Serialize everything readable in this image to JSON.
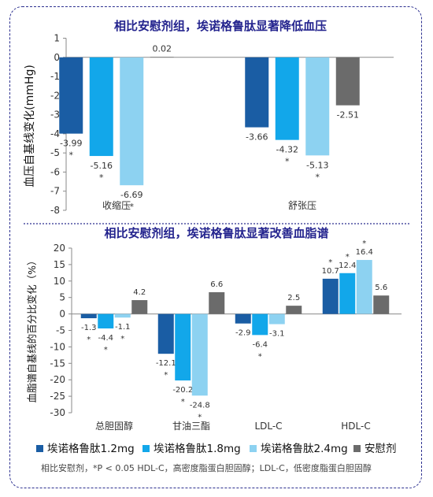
{
  "colors": {
    "s1": "#1a5da4",
    "s2": "#12a7ea",
    "s3": "#8dd2f1",
    "placebo": "#6b6b6b",
    "title": "#24248e",
    "frame": "#2b2f8f",
    "axis": "#8a8a8a",
    "text": "#333333",
    "sig": "#333333"
  },
  "footnote": "相比安慰剂，*P < 0.05    HDL-C，高密度脂蛋白胆固醇；LDL-C，低密度脂蛋白胆固醇",
  "chart_data": [
    {
      "type": "bar",
      "title": "相比安慰剂组，埃诺格鲁肽显著降低血压",
      "ylabel": "血压自基线变化(mmHg)",
      "xlabel": "",
      "ylim": [
        -8,
        1
      ],
      "yticks": [
        1,
        0,
        -1,
        -2,
        -3,
        -4,
        -5,
        -6,
        -7,
        -8
      ],
      "categories": [
        "收缩压",
        "舒张压"
      ],
      "series": [
        {
          "name": "埃诺格鲁肽1.2mg",
          "values": [
            -3.99,
            -3.66
          ],
          "labels": [
            "-3.99",
            "-3.66"
          ],
          "sig": [
            true,
            false
          ]
        },
        {
          "name": "埃诺格鲁肽1.8mg",
          "values": [
            -5.16,
            -4.32
          ],
          "labels": [
            "-5.16",
            "-4.32"
          ],
          "sig": [
            true,
            true
          ]
        },
        {
          "name": "埃诺格鲁肽2.4mg",
          "values": [
            -6.69,
            -5.13
          ],
          "labels": [
            "-6.69",
            "-5.13"
          ],
          "sig": [
            true,
            true
          ]
        },
        {
          "name": "安慰剂",
          "values": [
            0.02,
            -2.51
          ],
          "labels": [
            "0.02",
            "-2.51"
          ],
          "sig": [
            false,
            false
          ]
        }
      ],
      "grid": false
    },
    {
      "type": "bar",
      "title": "相比安慰剂组，埃诺格鲁肽显著改善血脂谱",
      "ylabel": "血脂谱自基线的百分比变化（%）",
      "xlabel": "",
      "ylim": [
        -30,
        20
      ],
      "yticks": [
        20,
        15,
        10,
        5,
        0,
        -5,
        -10,
        -15,
        -20,
        -25,
        -30
      ],
      "categories": [
        "总胆固醇",
        "甘油三酯",
        "LDL-C",
        "HDL-C"
      ],
      "series": [
        {
          "name": "埃诺格鲁肽1.2mg",
          "values": [
            -1.3,
            -12.1,
            -2.9,
            10.7
          ],
          "labels": [
            "-1.3",
            "-12.1",
            "-2.9",
            "10.7"
          ],
          "sig": [
            true,
            true,
            false,
            true
          ]
        },
        {
          "name": "埃诺格鲁肽1.8mg",
          "values": [
            -4.4,
            -20.2,
            -6.4,
            12.4
          ],
          "labels": [
            "-4.4",
            "-20.2",
            "-6.4",
            "12.4"
          ],
          "sig": [
            true,
            true,
            true,
            true
          ]
        },
        {
          "name": "埃诺格鲁肽2.4mg",
          "values": [
            -1.1,
            -24.8,
            -3.1,
            16.4
          ],
          "labels": [
            "-1.1",
            "-24.8",
            "-3.1",
            "16.4"
          ],
          "sig": [
            true,
            true,
            false,
            true
          ]
        },
        {
          "name": "安慰剂",
          "values": [
            4.2,
            6.6,
            2.5,
            5.6
          ],
          "labels": [
            "4.2",
            "6.6",
            "2.5",
            "5.6"
          ],
          "sig": [
            false,
            false,
            false,
            false
          ]
        }
      ],
      "grid": false,
      "legend": "bottom"
    }
  ]
}
